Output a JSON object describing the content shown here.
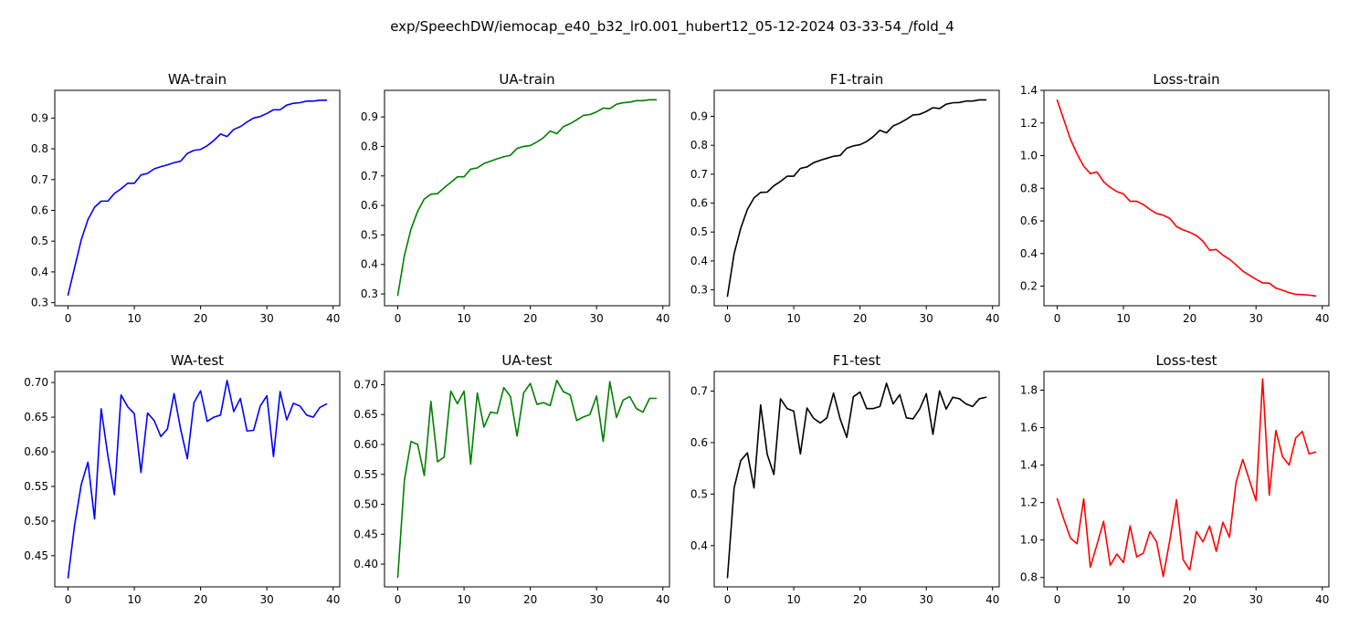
{
  "figure": {
    "title": "exp/SpeechDW/iemocap_e40_b32_lr0.001_hubert12_05-12-2024 03-33-54_/fold_4"
  },
  "chart_data": [
    {
      "type": "line",
      "title": "WA-train",
      "color": "#0000ff",
      "x_start": 0,
      "xlim": [
        -2,
        41
      ],
      "ylim": [
        0.29,
        0.99
      ],
      "xticks": [
        0,
        10,
        20,
        30,
        40
      ],
      "xtick_labels": [
        "0",
        "10",
        "20",
        "30",
        "40"
      ],
      "yticks": [
        0.3,
        0.4,
        0.5,
        0.6,
        0.7,
        0.8,
        0.9
      ],
      "ytick_labels": [
        "0.3",
        "0.4",
        "0.5",
        "0.6",
        "0.7",
        "0.8",
        "0.9"
      ],
      "values": [
        0.325,
        0.415,
        0.505,
        0.57,
        0.61,
        0.63,
        0.63,
        0.655,
        0.67,
        0.688,
        0.688,
        0.715,
        0.72,
        0.735,
        0.742,
        0.748,
        0.755,
        0.76,
        0.785,
        0.795,
        0.798,
        0.81,
        0.827,
        0.848,
        0.84,
        0.863,
        0.872,
        0.887,
        0.9,
        0.905,
        0.915,
        0.927,
        0.927,
        0.942,
        0.948,
        0.95,
        0.955,
        0.955,
        0.958,
        0.958
      ]
    },
    {
      "type": "line",
      "title": "UA-train",
      "color": "#008000",
      "x_start": 0,
      "xlim": [
        -2,
        41
      ],
      "ylim": [
        0.26,
        0.99
      ],
      "xticks": [
        0,
        10,
        20,
        30,
        40
      ],
      "xtick_labels": [
        "0",
        "10",
        "20",
        "30",
        "40"
      ],
      "yticks": [
        0.3,
        0.4,
        0.5,
        0.6,
        0.7,
        0.8,
        0.9
      ],
      "ytick_labels": [
        "0.3",
        "0.4",
        "0.5",
        "0.6",
        "0.7",
        "0.8",
        "0.9"
      ],
      "values": [
        0.295,
        0.43,
        0.52,
        0.58,
        0.622,
        0.638,
        0.64,
        0.66,
        0.678,
        0.697,
        0.697,
        0.723,
        0.727,
        0.742,
        0.75,
        0.758,
        0.765,
        0.77,
        0.793,
        0.8,
        0.803,
        0.815,
        0.83,
        0.852,
        0.843,
        0.867,
        0.877,
        0.89,
        0.905,
        0.908,
        0.917,
        0.93,
        0.928,
        0.943,
        0.948,
        0.95,
        0.955,
        0.955,
        0.958,
        0.958
      ]
    },
    {
      "type": "line",
      "title": "F1-train",
      "color": "#000000",
      "x_start": 0,
      "xlim": [
        -2,
        41
      ],
      "ylim": [
        0.245,
        0.99
      ],
      "xticks": [
        0,
        10,
        20,
        30,
        40
      ],
      "xtick_labels": [
        "0",
        "10",
        "20",
        "30",
        "40"
      ],
      "yticks": [
        0.3,
        0.4,
        0.5,
        0.6,
        0.7,
        0.8,
        0.9
      ],
      "ytick_labels": [
        "0.3",
        "0.4",
        "0.5",
        "0.6",
        "0.7",
        "0.8",
        "0.9"
      ],
      "values": [
        0.278,
        0.425,
        0.513,
        0.578,
        0.618,
        0.637,
        0.638,
        0.66,
        0.675,
        0.693,
        0.693,
        0.72,
        0.725,
        0.74,
        0.748,
        0.755,
        0.762,
        0.765,
        0.79,
        0.798,
        0.802,
        0.813,
        0.83,
        0.852,
        0.843,
        0.867,
        0.877,
        0.89,
        0.905,
        0.907,
        0.917,
        0.93,
        0.927,
        0.942,
        0.947,
        0.948,
        0.953,
        0.953,
        0.957,
        0.957
      ]
    },
    {
      "type": "line",
      "title": "Loss-train",
      "color": "#ff0000",
      "x_start": 0,
      "xlim": [
        -2,
        41
      ],
      "ylim": [
        0.08,
        1.4
      ],
      "xticks": [
        0,
        10,
        20,
        30,
        40
      ],
      "xtick_labels": [
        "0",
        "10",
        "20",
        "30",
        "40"
      ],
      "yticks": [
        0.2,
        0.4,
        0.6,
        0.8,
        1.0,
        1.2,
        1.4
      ],
      "ytick_labels": [
        "0.2",
        "0.4",
        "0.6",
        "0.8",
        "1.0",
        "1.2",
        "1.4"
      ],
      "values": [
        1.34,
        1.22,
        1.1,
        1.01,
        0.935,
        0.89,
        0.9,
        0.84,
        0.805,
        0.78,
        0.765,
        0.72,
        0.72,
        0.7,
        0.67,
        0.645,
        0.635,
        0.615,
        0.565,
        0.545,
        0.53,
        0.51,
        0.475,
        0.42,
        0.425,
        0.39,
        0.365,
        0.33,
        0.292,
        0.267,
        0.242,
        0.22,
        0.218,
        0.188,
        0.175,
        0.16,
        0.15,
        0.148,
        0.145,
        0.14
      ]
    },
    {
      "type": "line",
      "title": "WA-test",
      "color": "#0000ff",
      "x_start": 0,
      "xlim": [
        -2,
        41
      ],
      "ylim": [
        0.405,
        0.716
      ],
      "xticks": [
        0,
        10,
        20,
        30,
        40
      ],
      "xtick_labels": [
        "0",
        "10",
        "20",
        "30",
        "40"
      ],
      "yticks": [
        0.45,
        0.5,
        0.55,
        0.6,
        0.65,
        0.7
      ],
      "ytick_labels": [
        "0.45",
        "0.50",
        "0.55",
        "0.60",
        "0.65",
        "0.70"
      ],
      "values": [
        0.418,
        0.495,
        0.553,
        0.585,
        0.503,
        0.662,
        0.595,
        0.538,
        0.682,
        0.665,
        0.655,
        0.57,
        0.656,
        0.645,
        0.622,
        0.633,
        0.684,
        0.632,
        0.59,
        0.671,
        0.688,
        0.644,
        0.65,
        0.653,
        0.703,
        0.658,
        0.677,
        0.63,
        0.631,
        0.666,
        0.681,
        0.593,
        0.687,
        0.646,
        0.67,
        0.666,
        0.653,
        0.65,
        0.664,
        0.669
      ]
    },
    {
      "type": "line",
      "title": "UA-test",
      "color": "#008000",
      "x_start": 0,
      "xlim": [
        -2,
        41
      ],
      "ylim": [
        0.362,
        0.722
      ],
      "xticks": [
        0,
        10,
        20,
        30,
        40
      ],
      "xtick_labels": [
        "0",
        "10",
        "20",
        "30",
        "40"
      ],
      "yticks": [
        0.4,
        0.45,
        0.5,
        0.55,
        0.6,
        0.65,
        0.7
      ],
      "ytick_labels": [
        "0.40",
        "0.45",
        "0.50",
        "0.55",
        "0.60",
        "0.65",
        "0.70"
      ],
      "values": [
        0.378,
        0.54,
        0.605,
        0.6,
        0.548,
        0.672,
        0.571,
        0.579,
        0.689,
        0.668,
        0.689,
        0.567,
        0.686,
        0.629,
        0.654,
        0.652,
        0.695,
        0.68,
        0.614,
        0.686,
        0.702,
        0.667,
        0.67,
        0.665,
        0.707,
        0.688,
        0.683,
        0.64,
        0.646,
        0.65,
        0.681,
        0.605,
        0.705,
        0.645,
        0.674,
        0.68,
        0.66,
        0.654,
        0.677,
        0.677
      ]
    },
    {
      "type": "line",
      "title": "F1-test",
      "color": "#000000",
      "x_start": 0,
      "xlim": [
        -2,
        41
      ],
      "ylim": [
        0.32,
        0.738
      ],
      "xticks": [
        0,
        10,
        20,
        30,
        40
      ],
      "xtick_labels": [
        "0",
        "10",
        "20",
        "30",
        "40"
      ],
      "yticks": [
        0.4,
        0.5,
        0.6,
        0.7
      ],
      "ytick_labels": [
        "0.4",
        "0.5",
        "0.6",
        "0.7"
      ],
      "values": [
        0.338,
        0.512,
        0.565,
        0.58,
        0.512,
        0.673,
        0.577,
        0.538,
        0.685,
        0.666,
        0.661,
        0.578,
        0.667,
        0.647,
        0.638,
        0.648,
        0.696,
        0.646,
        0.61,
        0.689,
        0.698,
        0.666,
        0.666,
        0.67,
        0.715,
        0.675,
        0.693,
        0.648,
        0.646,
        0.665,
        0.695,
        0.616,
        0.7,
        0.665,
        0.688,
        0.685,
        0.675,
        0.67,
        0.685,
        0.688
      ]
    },
    {
      "type": "line",
      "title": "Loss-test",
      "color": "#ff0000",
      "x_start": 0,
      "xlim": [
        -2,
        41
      ],
      "ylim": [
        0.75,
        1.9
      ],
      "xticks": [
        0,
        10,
        20,
        30,
        40
      ],
      "xtick_labels": [
        "0",
        "10",
        "20",
        "30",
        "40"
      ],
      "yticks": [
        0.8,
        1.0,
        1.2,
        1.4,
        1.6,
        1.8
      ],
      "ytick_labels": [
        "0.8",
        "1.0",
        "1.2",
        "1.4",
        "1.6",
        "1.8"
      ],
      "values": [
        1.22,
        1.11,
        1.01,
        0.98,
        1.22,
        0.855,
        0.975,
        1.1,
        0.865,
        0.925,
        0.88,
        1.075,
        0.91,
        0.93,
        1.045,
        0.99,
        0.805,
        1.0,
        1.215,
        0.895,
        0.84,
        1.045,
        0.99,
        1.075,
        0.94,
        1.095,
        1.015,
        1.31,
        1.43,
        1.32,
        1.21,
        1.86,
        1.24,
        1.585,
        1.445,
        1.4,
        1.545,
        1.58,
        1.46,
        1.47
      ]
    }
  ]
}
